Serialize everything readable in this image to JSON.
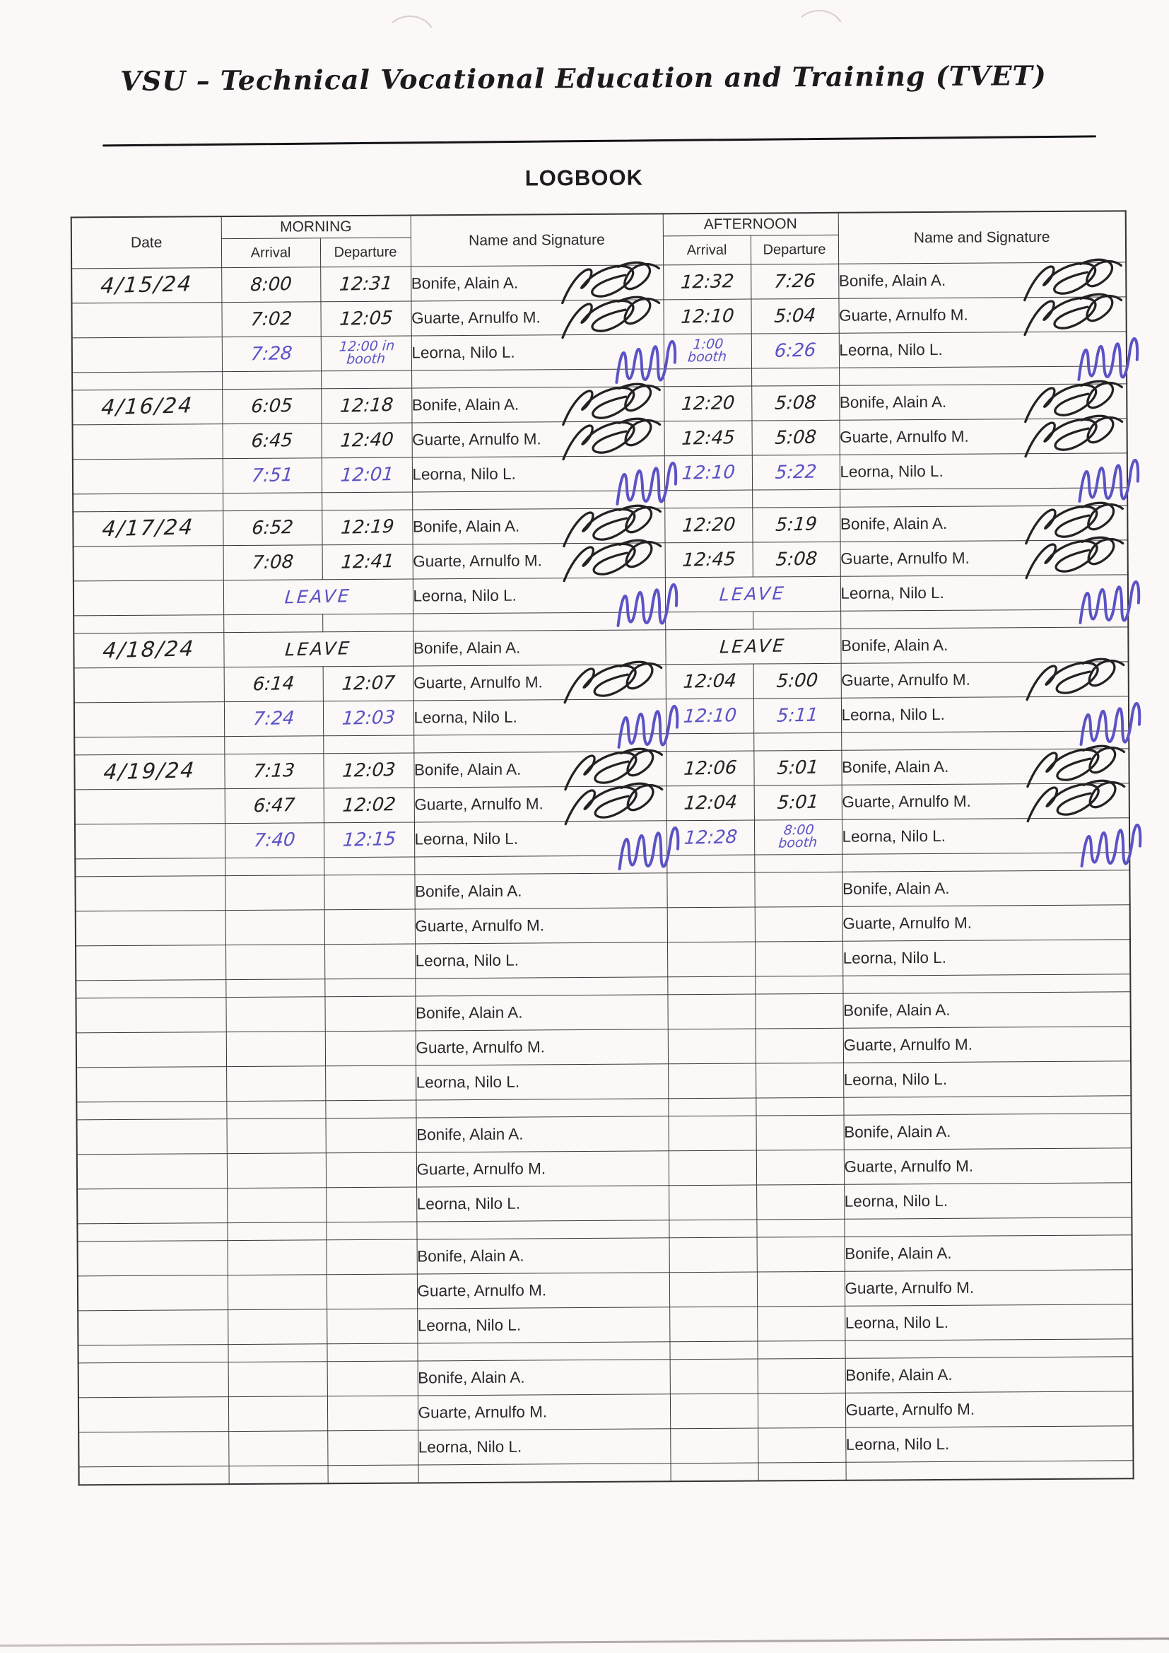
{
  "page": {
    "header_title": "VSU – Technical Vocational Education and Training (TVET)",
    "doc_title": "LOGBOOK"
  },
  "ink_colors": {
    "black": "#242122",
    "blue": "#5b53c5"
  },
  "table": {
    "columns": {
      "date": "Date",
      "morning": "MORNING",
      "afternoon": "AFTERNOON",
      "arrival": "Arrival",
      "departure": "Departure",
      "name_sig": "Name and Signature"
    },
    "names": [
      "Bonife, Alain A.",
      "Guarte, Arnulfo M.",
      "Leorna, Nilo L."
    ],
    "blocks": [
      {
        "date": "4/15/24",
        "rows": [
          {
            "name": "Bonife, Alain A.",
            "m_arr": "8:00",
            "m_dep": "12:31",
            "a_arr": "12:32",
            "a_dep": "7:26",
            "ink": "black",
            "signed": true
          },
          {
            "name": "Guarte, Arnulfo M.",
            "m_arr": "7:02",
            "m_dep": "12:05",
            "a_arr": "12:10",
            "a_dep": "5:04",
            "ink": "black",
            "signed": true
          },
          {
            "name": "Leorna, Nilo L.",
            "m_arr": "7:28",
            "m_dep": "12:00 in booth",
            "a_arr": "1:00\nbooth",
            "a_dep": "6:26",
            "ink": "blue",
            "signed": true
          }
        ]
      },
      {
        "date": "4/16/24",
        "rows": [
          {
            "name": "Bonife, Alain A.",
            "m_arr": "6:05",
            "m_dep": "12:18",
            "a_arr": "12:20",
            "a_dep": "5:08",
            "ink": "black",
            "signed": true
          },
          {
            "name": "Guarte, Arnulfo M.",
            "m_arr": "6:45",
            "m_dep": "12:40",
            "a_arr": "12:45",
            "a_dep": "5:08",
            "ink": "black",
            "signed": true
          },
          {
            "name": "Leorna, Nilo L.",
            "m_arr": "7:51",
            "m_dep": "12:01",
            "a_arr": "12:10",
            "a_dep": "5:22",
            "ink": "blue",
            "signed": true
          }
        ]
      },
      {
        "date": "4/17/24",
        "rows": [
          {
            "name": "Bonife, Alain A.",
            "m_arr": "6:52",
            "m_dep": "12:19",
            "a_arr": "12:20",
            "a_dep": "5:19",
            "ink": "black",
            "signed": true
          },
          {
            "name": "Guarte, Arnulfo M.",
            "m_arr": "7:08",
            "m_dep": "12:41",
            "a_arr": "12:45",
            "a_dep": "5:08",
            "ink": "black",
            "signed": true
          },
          {
            "name": "Leorna, Nilo L.",
            "m_span": "LEAVE",
            "a_span": "LEAVE",
            "ink": "blue",
            "signed": true
          }
        ]
      },
      {
        "date": "4/18/24",
        "rows": [
          {
            "name": "Bonife, Alain A.",
            "m_span": "LEAVE",
            "a_span": "LEAVE",
            "ink": "black",
            "signed": false
          },
          {
            "name": "Guarte, Arnulfo M.",
            "m_arr": "6:14",
            "m_dep": "12:07",
            "a_arr": "12:04",
            "a_dep": "5:00",
            "ink": "black",
            "signed": true
          },
          {
            "name": "Leorna, Nilo L.",
            "m_arr": "7:24",
            "m_dep": "12:03",
            "a_arr": "12:10",
            "a_dep": "5:11",
            "ink": "blue",
            "signed": true
          }
        ]
      },
      {
        "date": "4/19/24",
        "rows": [
          {
            "name": "Bonife, Alain A.",
            "m_arr": "7:13",
            "m_dep": "12:03",
            "a_arr": "12:06",
            "a_dep": "5:01",
            "ink": "black",
            "signed": true
          },
          {
            "name": "Guarte, Arnulfo M.",
            "m_arr": "6:47",
            "m_dep": "12:02",
            "a_arr": "12:04",
            "a_dep": "5:01",
            "ink": "black",
            "signed": true
          },
          {
            "name": "Leorna, Nilo L.",
            "m_arr": "7:40",
            "m_dep": "12:15",
            "a_arr": "12:28",
            "a_dep": "8:00\nbooth",
            "ink": "blue",
            "signed": true
          }
        ]
      },
      {
        "date": "",
        "rows": [
          {
            "name": "Bonife, Alain A.",
            "m_arr": "",
            "m_dep": "",
            "a_arr": "",
            "a_dep": "",
            "ink": "black",
            "signed": false
          },
          {
            "name": "Guarte, Arnulfo M.",
            "m_arr": "",
            "m_dep": "",
            "a_arr": "",
            "a_dep": "",
            "ink": "black",
            "signed": false
          },
          {
            "name": "Leorna, Nilo L.",
            "m_arr": "",
            "m_dep": "",
            "a_arr": "",
            "a_dep": "",
            "ink": "black",
            "signed": false
          }
        ]
      },
      {
        "date": "",
        "rows": [
          {
            "name": "Bonife, Alain A.",
            "m_arr": "",
            "m_dep": "",
            "a_arr": "",
            "a_dep": "",
            "ink": "black",
            "signed": false
          },
          {
            "name": "Guarte, Arnulfo M.",
            "m_arr": "",
            "m_dep": "",
            "a_arr": "",
            "a_dep": "",
            "ink": "black",
            "signed": false
          },
          {
            "name": "Leorna, Nilo L.",
            "m_arr": "",
            "m_dep": "",
            "a_arr": "",
            "a_dep": "",
            "ink": "black",
            "signed": false
          }
        ]
      },
      {
        "date": "",
        "rows": [
          {
            "name": "Bonife, Alain A.",
            "m_arr": "",
            "m_dep": "",
            "a_arr": "",
            "a_dep": "",
            "ink": "black",
            "signed": false
          },
          {
            "name": "Guarte, Arnulfo M.",
            "m_arr": "",
            "m_dep": "",
            "a_arr": "",
            "a_dep": "",
            "ink": "black",
            "signed": false
          },
          {
            "name": "Leorna, Nilo L.",
            "m_arr": "",
            "m_dep": "",
            "a_arr": "",
            "a_dep": "",
            "ink": "black",
            "signed": false
          }
        ]
      },
      {
        "date": "",
        "rows": [
          {
            "name": "Bonife, Alain A.",
            "m_arr": "",
            "m_dep": "",
            "a_arr": "",
            "a_dep": "",
            "ink": "black",
            "signed": false
          },
          {
            "name": "Guarte, Arnulfo M.",
            "m_arr": "",
            "m_dep": "",
            "a_arr": "",
            "a_dep": "",
            "ink": "black",
            "signed": false
          },
          {
            "name": "Leorna, Nilo L.",
            "m_arr": "",
            "m_dep": "",
            "a_arr": "",
            "a_dep": "",
            "ink": "black",
            "signed": false
          }
        ]
      },
      {
        "date": "",
        "rows": [
          {
            "name": "Bonife, Alain A.",
            "m_arr": "",
            "m_dep": "",
            "a_arr": "",
            "a_dep": "",
            "ink": "black",
            "signed": false
          },
          {
            "name": "Guarte, Arnulfo M.",
            "m_arr": "",
            "m_dep": "",
            "a_arr": "",
            "a_dep": "",
            "ink": "black",
            "signed": false
          },
          {
            "name": "Leorna, Nilo L.",
            "m_arr": "",
            "m_dep": "",
            "a_arr": "",
            "a_dep": "",
            "ink": "black",
            "signed": false
          }
        ]
      }
    ]
  }
}
